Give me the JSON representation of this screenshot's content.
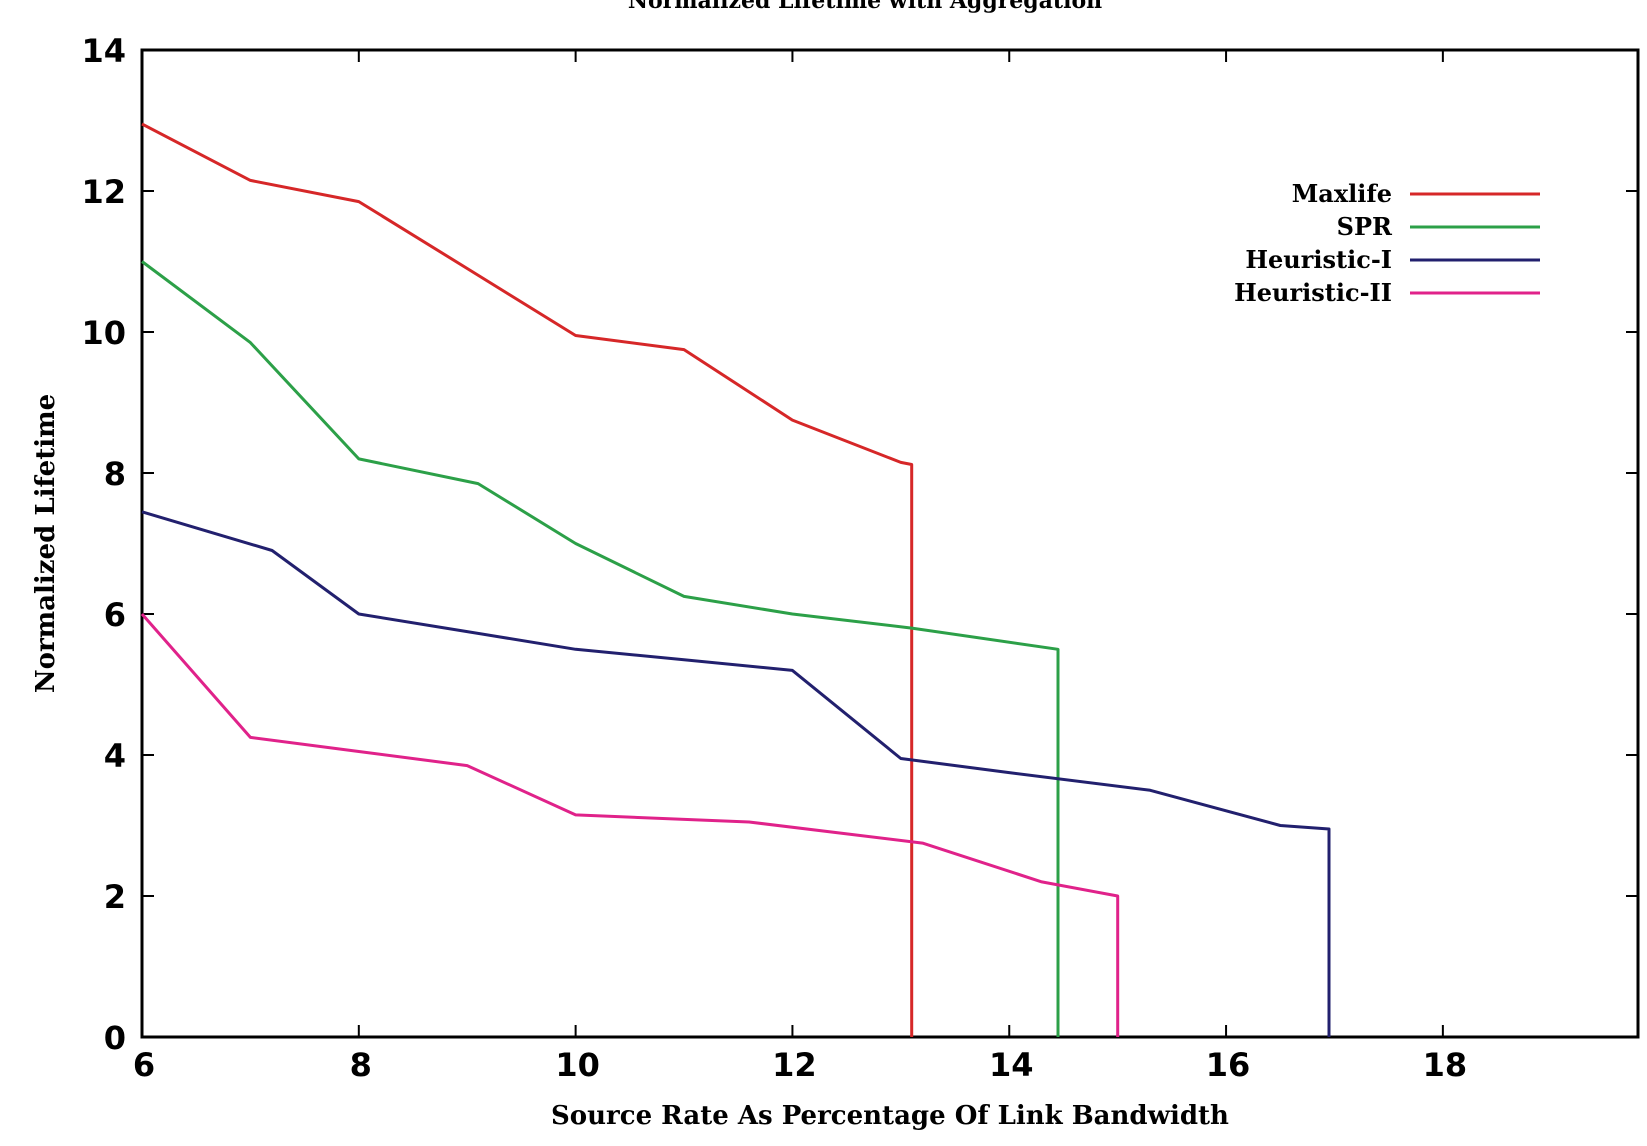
{
  "chart_data": {
    "type": "line",
    "title": "Normalized Lifetime with Aggregation",
    "xlabel": "Source Rate As Percentage Of Link Bandwidth",
    "ylabel": "Normalized Lifetime",
    "xlim": [
      6,
      19.8
    ],
    "ylim": [
      0,
      14
    ],
    "xticks": [
      6,
      8,
      10,
      12,
      14,
      16,
      18
    ],
    "yticks": [
      0,
      2,
      4,
      6,
      8,
      10,
      12,
      14
    ],
    "grid": false,
    "legend_position": "top-right",
    "series": [
      {
        "name": "Maxlife",
        "color": "#d62728",
        "x": [
          6,
          7,
          8,
          9,
          10,
          11,
          12,
          13,
          13.1,
          13.1
        ],
        "y": [
          12.95,
          12.15,
          11.85,
          10.9,
          9.95,
          9.75,
          8.75,
          8.15,
          8.12,
          0
        ]
      },
      {
        "name": "SPR",
        "color": "#2ca048",
        "x": [
          6,
          7,
          8,
          9.1,
          10,
          11,
          12,
          13.1,
          14.45,
          14.45
        ],
        "y": [
          11.0,
          9.85,
          8.2,
          7.85,
          7.0,
          6.25,
          6.0,
          5.8,
          5.5,
          0
        ]
      },
      {
        "name": "Heuristic-I",
        "color": "#22206e",
        "x": [
          6,
          7.2,
          8,
          9,
          10,
          11,
          12,
          13,
          14,
          15.3,
          16.5,
          16.95,
          16.95
        ],
        "y": [
          7.45,
          6.9,
          6.0,
          5.75,
          5.5,
          5.35,
          5.2,
          3.95,
          3.75,
          3.5,
          3.0,
          2.95,
          0
        ]
      },
      {
        "name": "Heuristic-II",
        "color": "#e0228a",
        "x": [
          6,
          7,
          8,
          9,
          10,
          11.6,
          13.2,
          14.3,
          15.0,
          15.0
        ],
        "y": [
          6.0,
          4.25,
          4.05,
          3.85,
          3.15,
          3.05,
          2.75,
          2.2,
          2.0,
          0
        ]
      }
    ]
  }
}
